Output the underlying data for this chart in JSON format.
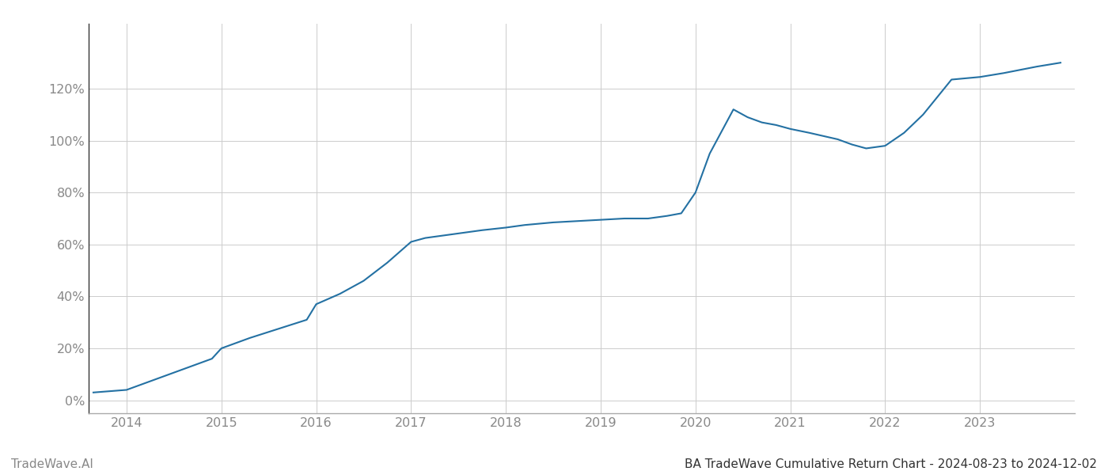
{
  "title": "BA TradeWave Cumulative Return Chart - 2024-08-23 to 2024-12-02",
  "watermark": "TradeWave.AI",
  "line_color": "#2471A3",
  "background_color": "#ffffff",
  "grid_color": "#cccccc",
  "x_years": [
    2014,
    2015,
    2016,
    2017,
    2018,
    2019,
    2020,
    2021,
    2022,
    2023
  ],
  "x_data": [
    2013.65,
    2014.0,
    2014.3,
    2014.6,
    2014.9,
    2015.0,
    2015.3,
    2015.6,
    2015.9,
    2016.0,
    2016.25,
    2016.5,
    2016.75,
    2017.0,
    2017.15,
    2017.35,
    2017.55,
    2017.75,
    2018.0,
    2018.2,
    2018.5,
    2018.75,
    2019.0,
    2019.25,
    2019.5,
    2019.6,
    2019.7,
    2019.85,
    2020.0,
    2020.15,
    2020.4,
    2020.55,
    2020.7,
    2020.85,
    2021.0,
    2021.2,
    2021.5,
    2021.65,
    2021.8,
    2022.0,
    2022.2,
    2022.4,
    2022.7,
    2023.0,
    2023.25,
    2023.6,
    2023.85
  ],
  "y_data": [
    3.0,
    4.0,
    8.0,
    12.0,
    16.0,
    20.0,
    24.0,
    27.5,
    31.0,
    37.0,
    41.0,
    46.0,
    53.0,
    61.0,
    62.5,
    63.5,
    64.5,
    65.5,
    66.5,
    67.5,
    68.5,
    69.0,
    69.5,
    70.0,
    70.0,
    70.5,
    71.0,
    72.0,
    80.0,
    95.0,
    112.0,
    109.0,
    107.0,
    106.0,
    104.5,
    103.0,
    100.5,
    98.5,
    97.0,
    98.0,
    103.0,
    110.0,
    123.5,
    124.5,
    126.0,
    128.5,
    130.0
  ],
  "ylim": [
    -5,
    145
  ],
  "yticks": [
    0,
    20,
    40,
    60,
    80,
    100,
    120
  ],
  "xlim": [
    2013.6,
    2024.0
  ],
  "line_width": 1.5,
  "title_fontsize": 11,
  "watermark_fontsize": 11,
  "tick_fontsize": 11.5,
  "tick_color": "#888888",
  "left_spine_color": "#333333",
  "bottom_spine_color": "#aaaaaa"
}
